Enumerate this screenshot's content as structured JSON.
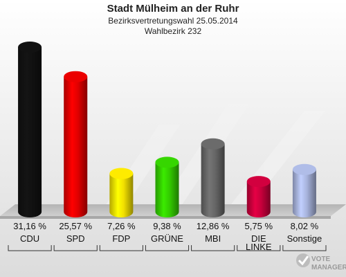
{
  "header": {
    "title": "Stadt Mülheim an der Ruhr",
    "subtitle": "Bezirksvertretungswahl 25.05.2014",
    "district": "Wahlbezirk 232"
  },
  "chart_data": {
    "type": "bar",
    "categories": [
      "CDU",
      "SPD",
      "FDP",
      "GRÜNE",
      "MBI",
      "DIE LINKE",
      "Sonstige"
    ],
    "values": [
      31.16,
      25.57,
      7.26,
      9.38,
      12.86,
      5.75,
      8.02
    ],
    "value_labels": [
      "31,16 %",
      "25,57 %",
      "7,26 %",
      "9,38 %",
      "12,86 %",
      "5,75 %",
      "8,02 %"
    ],
    "colors": [
      "#111111",
      "#e00000",
      "#f2e000",
      "#33cc00",
      "#666666",
      "#c8003c",
      "#a8b4dd"
    ],
    "ylim": [
      0,
      31.16
    ],
    "grid": false,
    "legend": "none"
  },
  "logo": {
    "line1": "VOTE",
    "line2": "MANAGER"
  }
}
